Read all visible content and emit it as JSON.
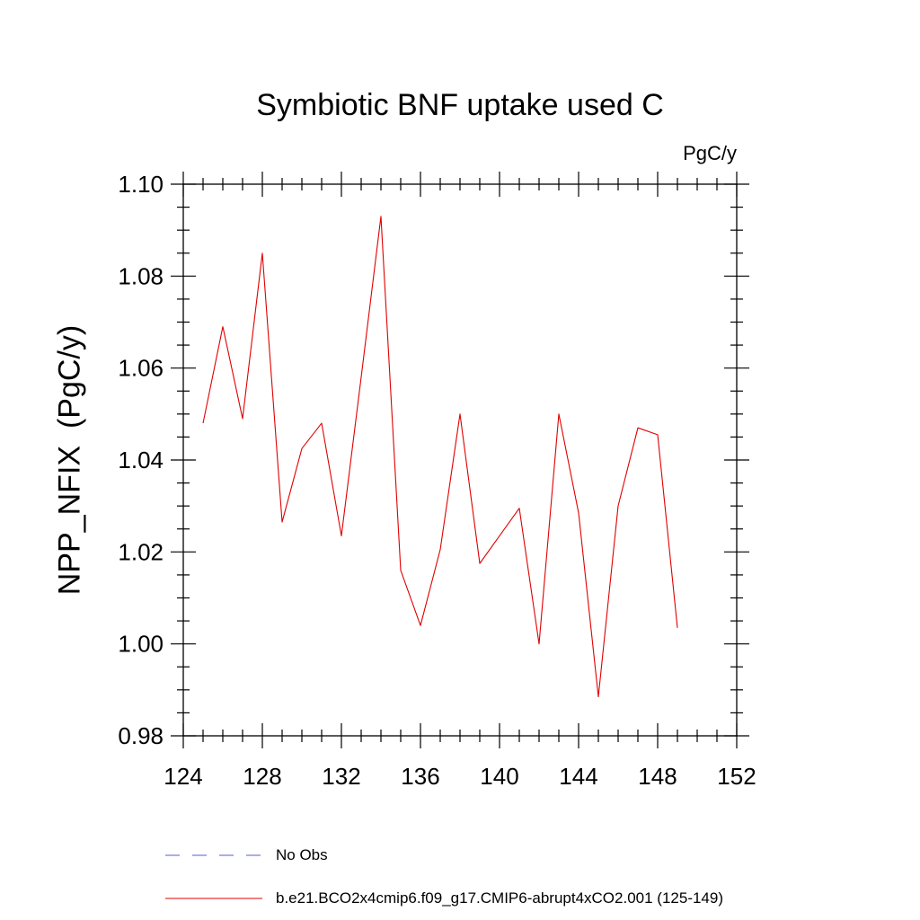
{
  "chart_data": {
    "type": "line",
    "title": "Symbiotic BNF uptake used C",
    "units": "PgC/y",
    "ylabel": "NPP_NFIX  (PgC/y)",
    "xlabel": "",
    "xlim": [
      124,
      152
    ],
    "ylim": [
      0.98,
      1.1
    ],
    "xticks": [
      124,
      128,
      132,
      136,
      140,
      144,
      148,
      152
    ],
    "xtick_labels": [
      "124",
      "128",
      "132",
      "136",
      "140",
      "144",
      "148",
      "152"
    ],
    "yticks": [
      0.98,
      1.0,
      1.02,
      1.04,
      1.06,
      1.08,
      1.1
    ],
    "ytick_labels": [
      "0.98",
      "1.00",
      "1.02",
      "1.04",
      "1.06",
      "1.08",
      "1.10"
    ],
    "grid": false,
    "legend_placement": "bottom",
    "series": [
      {
        "name": "b.e21.BCO2x4cmip6.f09_g17.CMIP6-abrupt4xCO2.001 (125-149)",
        "color": "#e00000",
        "dash": "solid",
        "x": [
          125,
          126,
          127,
          128,
          129,
          130,
          131,
          132,
          133,
          134,
          135,
          136,
          137,
          138,
          139,
          140,
          141,
          142,
          143,
          144,
          145,
          146,
          147,
          148,
          149
        ],
        "y": [
          1.048,
          1.069,
          1.049,
          1.085,
          1.0265,
          1.0425,
          1.048,
          1.0235,
          1.058,
          1.093,
          1.016,
          1.004,
          1.0205,
          1.05,
          1.0175,
          1.0235,
          1.0295,
          1.0,
          1.05,
          1.0285,
          0.9885,
          1.03,
          1.047,
          1.0455,
          1.0035
        ]
      }
    ],
    "legend": [
      {
        "label": "No Obs",
        "color": "#5a5ad0",
        "dash": "dashed"
      },
      {
        "label": "b.e21.BCO2x4cmip6.f09_g17.CMIP6-abrupt4xCO2.001 (125-149)",
        "color": "#e00000",
        "dash": "solid"
      }
    ]
  }
}
